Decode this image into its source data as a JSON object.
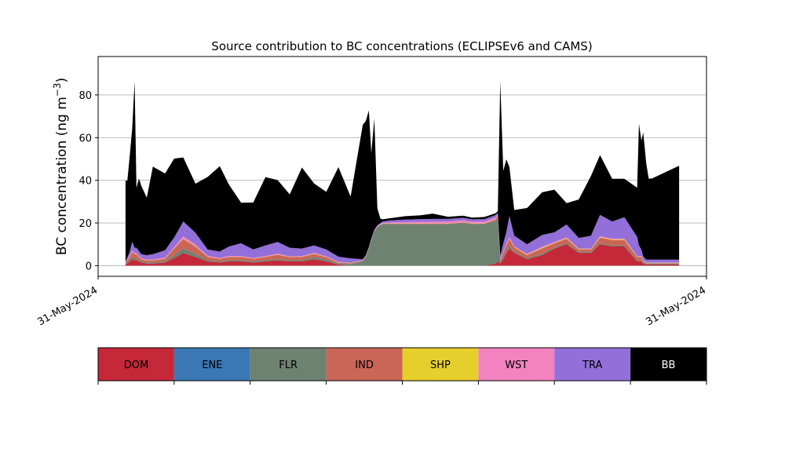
{
  "chart_data": {
    "type": "area",
    "stacked": true,
    "title": "Source contribution to BC concentrations (ECLIPSEv6 and CAMS)",
    "xlabel": "",
    "ylabel": "BC concentration (ng m",
    "ylabel_superscript": "−3",
    "ylabel_close": ")",
    "ylim": [
      -5,
      98
    ],
    "yticks": [
      0,
      20,
      40,
      60,
      80
    ],
    "xlim": [
      0,
      100
    ],
    "xtick_labels": [
      "31-May-2024",
      "31-May-2024"
    ],
    "grid": "horizontal",
    "x": [
      4.5,
      4.8,
      5.2,
      5.6,
      6.0,
      6.3,
      6.7,
      7.1,
      8.0,
      9.0,
      11.0,
      12.5,
      14.0,
      16.0,
      18.0,
      20.0,
      21.5,
      23.5,
      25.5,
      27.5,
      29.5,
      31.5,
      33.5,
      35.5,
      37.5,
      39.5,
      41.5,
      43.5,
      44.0,
      44.5,
      44.9,
      45.4,
      45.9,
      46.4,
      46.8,
      47.2,
      48.0,
      50.5,
      53.0,
      55.0,
      57.5,
      60.0,
      61.5,
      63.5,
      65.3,
      65.7,
      66.1,
      66.6,
      67.1,
      67.6,
      68.4,
      70.5,
      73.0,
      75.0,
      77.0,
      79.0,
      81.0,
      82.5,
      84.5,
      86.5,
      88.6,
      88.9,
      89.3,
      89.6,
      90.1,
      90.5,
      91.0,
      95.5
    ],
    "series": [
      {
        "name": "DOM",
        "color": "#c52838",
        "values": [
          0.5,
          1,
          2,
          3,
          2.5,
          2.5,
          2,
          1.5,
          1,
          1,
          1.5,
          3.5,
          6,
          4,
          2,
          1.5,
          2,
          2,
          1.5,
          2,
          2.5,
          2,
          2,
          3,
          2,
          0.5,
          0,
          0,
          0,
          0,
          0,
          0,
          0,
          0,
          0,
          0,
          0,
          0,
          0,
          0,
          0,
          0,
          0,
          0,
          1,
          2,
          1,
          3,
          6,
          8,
          6,
          3,
          5,
          8,
          10,
          6,
          6,
          10,
          9,
          9,
          2,
          2,
          2,
          1,
          0.5,
          0.5,
          0.5,
          0.5
        ]
      },
      {
        "name": "ENE",
        "color": "#3a77b4",
        "values": [
          0,
          0,
          0,
          0,
          0,
          0,
          0,
          0,
          0,
          0,
          0,
          0,
          0,
          0,
          0,
          0,
          0,
          0,
          0,
          0,
          0,
          0,
          0,
          0,
          0,
          0,
          0,
          0,
          0,
          0,
          0,
          0,
          0,
          0,
          0,
          0,
          0,
          0,
          0,
          0,
          0,
          0,
          0,
          0,
          0,
          0,
          0,
          0,
          0,
          0,
          0,
          0,
          0,
          0,
          0,
          0,
          0,
          0,
          0,
          0,
          0,
          0,
          0,
          0,
          0,
          0,
          0,
          0
        ]
      },
      {
        "name": "FLR",
        "color": "#6e8272",
        "values": [
          0.3,
          0.5,
          0.6,
          1,
          0.8,
          0.8,
          0.6,
          0.5,
          0.5,
          0.5,
          0.6,
          1.5,
          2,
          1.5,
          0.6,
          0.5,
          0.6,
          0.6,
          0.5,
          0.6,
          0.6,
          0.5,
          0.6,
          1,
          0.8,
          0.5,
          0.8,
          2,
          4,
          8,
          12,
          16,
          18,
          19,
          19.5,
          19.5,
          19.5,
          19.5,
          19.5,
          19.5,
          19.5,
          20,
          19.5,
          19.5,
          20,
          20,
          1,
          1,
          0.5,
          1.5,
          0.6,
          0.5,
          0.6,
          0.5,
          0.6,
          0.5,
          0.5,
          0.6,
          0.5,
          0.5,
          0.5,
          0.5,
          0.5,
          0.5,
          0.5,
          0.5,
          0.5,
          0.5
        ]
      },
      {
        "name": "IND",
        "color": "#c96656",
        "values": [
          0.4,
          1,
          1.5,
          2.5,
          2,
          2,
          1.5,
          1,
          1,
          1,
          1.2,
          3,
          4.5,
          3.5,
          1.5,
          1.2,
          1.5,
          1.5,
          1.2,
          1.5,
          2,
          1.5,
          1.5,
          1.5,
          1.2,
          0.4,
          0.3,
          0.3,
          0.3,
          0.2,
          0.2,
          0.2,
          0.2,
          0.2,
          0.2,
          0.2,
          0.2,
          0.2,
          0.2,
          0.2,
          0.2,
          0.2,
          0.2,
          0.2,
          0.6,
          1.5,
          0.6,
          2,
          3,
          3,
          2,
          1.5,
          2.5,
          2,
          2,
          1,
          1,
          2.5,
          2.5,
          2.5,
          1.5,
          1.5,
          1.5,
          0.6,
          0.2,
          0.2,
          0.2,
          0.2
        ]
      },
      {
        "name": "SHP",
        "color": "#e6cf2c",
        "values": [
          0,
          0,
          0.1,
          0.1,
          0.1,
          0.1,
          0.1,
          0.1,
          0.1,
          0.1,
          0.1,
          0.1,
          0.2,
          0.1,
          0.1,
          0.1,
          0.1,
          0.1,
          0.1,
          0.1,
          0.1,
          0.1,
          0.1,
          0.1,
          0.1,
          0.1,
          0.1,
          0.1,
          0.1,
          0.1,
          0.1,
          0.1,
          0.1,
          0.1,
          0.1,
          0.1,
          0.1,
          0.1,
          0.1,
          0.1,
          0.1,
          0.1,
          0.1,
          0.1,
          0.1,
          0.1,
          0.1,
          0.1,
          0.2,
          0.2,
          0.1,
          0.2,
          0.3,
          0.2,
          0.3,
          0.2,
          0.2,
          0.3,
          0.3,
          0.3,
          0.2,
          0.2,
          0.2,
          0.1,
          0.1,
          0.1,
          0.1,
          0.1
        ]
      },
      {
        "name": "WST",
        "color": "#f283c0",
        "values": [
          0.2,
          0.3,
          0.4,
          0.6,
          0.5,
          0.5,
          0.4,
          0.3,
          0.3,
          0.3,
          0.3,
          0.6,
          1,
          0.8,
          0.4,
          0.3,
          0.3,
          0.3,
          0.3,
          0.3,
          0.4,
          0.3,
          0.3,
          0.4,
          0.3,
          0.2,
          0.2,
          0.1,
          0.1,
          0.1,
          0.1,
          0.1,
          0.1,
          0.1,
          0.3,
          0.3,
          0.4,
          0.6,
          0.7,
          0.8,
          0.8,
          0.9,
          0.8,
          0.8,
          0.8,
          0.6,
          0.3,
          0.4,
          0.6,
          0.6,
          0.4,
          0.3,
          0.5,
          0.4,
          0.4,
          0.3,
          0.3,
          0.4,
          0.4,
          0.4,
          0.3,
          0.3,
          0.3,
          0.2,
          0.2,
          0.2,
          0.2,
          0.2
        ]
      },
      {
        "name": "TRA",
        "color": "#936fd9",
        "values": [
          0.5,
          1,
          2,
          4,
          2.5,
          2.5,
          2.3,
          2,
          2,
          2.5,
          3.5,
          4.5,
          7,
          5.5,
          3,
          3,
          4.5,
          6,
          4,
          5,
          5.5,
          4,
          3.5,
          3.5,
          3.2,
          2.5,
          2,
          0.5,
          0.3,
          0.3,
          0.3,
          0.4,
          0.5,
          0.6,
          0.6,
          0.8,
          1,
          1.2,
          1.3,
          1.3,
          1.3,
          1.2,
          1.1,
          1.2,
          1.2,
          0.5,
          1.5,
          4,
          5.5,
          10,
          5,
          4.5,
          5.5,
          4.5,
          6,
          5,
          6,
          10,
          8,
          10,
          9,
          5,
          3,
          2,
          1.3,
          1.3,
          1.3,
          1.3
        ]
      },
      {
        "name": "BB",
        "color": "#000000",
        "values": [
          38,
          36,
          45,
          53,
          78,
          28,
          34,
          32,
          27,
          41,
          36,
          37,
          30,
          23,
          34,
          40,
          29,
          19,
          22,
          32,
          29,
          25,
          38,
          29,
          27,
          42,
          29,
          63,
          63,
          64,
          40,
          52,
          8,
          2,
          1,
          1,
          1,
          1.6,
          1.8,
          2.5,
          1,
          1,
          0.8,
          1,
          0.8,
          0.8,
          82,
          34,
          34,
          23,
          12,
          17,
          20,
          20,
          10,
          18,
          28,
          28,
          20,
          18,
          23,
          57,
          51,
          58,
          45,
          38,
          38,
          44
        ]
      }
    ],
    "legend": {
      "placement": "below",
      "entries": [
        {
          "label": "DOM",
          "color": "#c52838",
          "text_color": "#000000"
        },
        {
          "label": "ENE",
          "color": "#3a77b4",
          "text_color": "#000000"
        },
        {
          "label": "FLR",
          "color": "#6e8272",
          "text_color": "#000000"
        },
        {
          "label": "IND",
          "color": "#c96656",
          "text_color": "#000000"
        },
        {
          "label": "SHP",
          "color": "#e6cf2c",
          "text_color": "#000000"
        },
        {
          "label": "WST",
          "color": "#f283c0",
          "text_color": "#000000"
        },
        {
          "label": "TRA",
          "color": "#936fd9",
          "text_color": "#000000"
        },
        {
          "label": "BB",
          "color": "#000000",
          "text_color": "#ffffff"
        }
      ]
    }
  }
}
